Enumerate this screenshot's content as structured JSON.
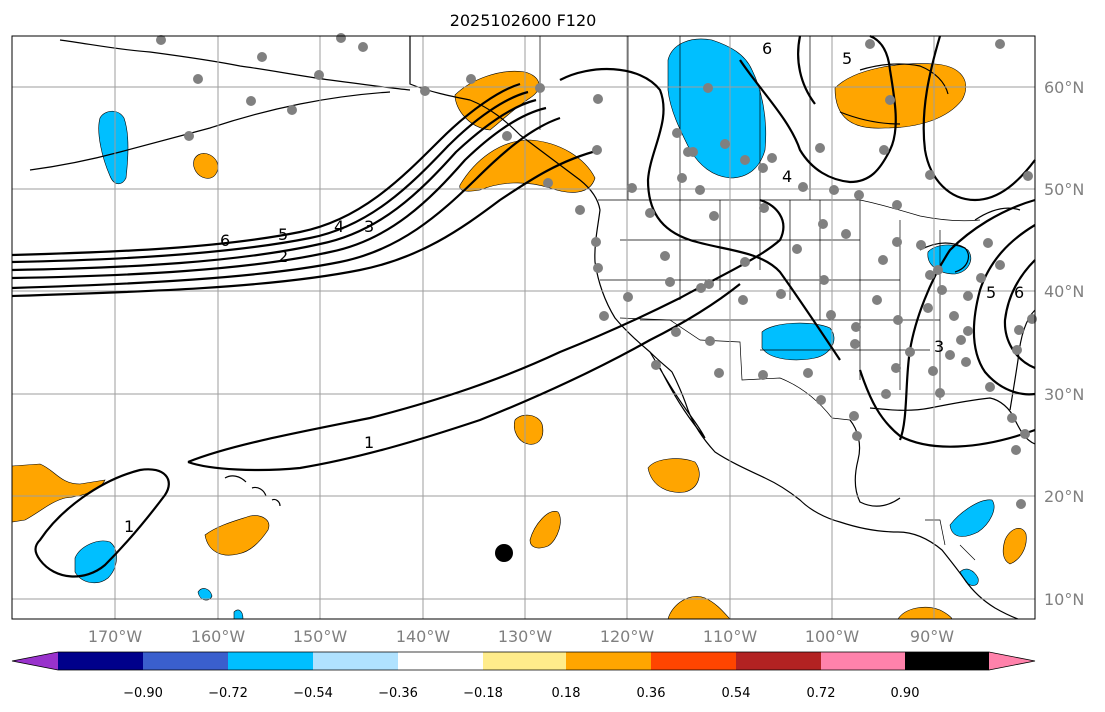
{
  "title": "2025102600 F120",
  "lon_labels": [
    "170°W",
    "160°W",
    "150°W",
    "140°W",
    "130°W",
    "120°W",
    "110°W",
    "100°W",
    "90°W"
  ],
  "lat_labels": [
    "60°N",
    "50°N",
    "40°N",
    "30°N",
    "20°N",
    "10°N"
  ],
  "contour_labels": [
    "6",
    "5",
    "4",
    "3",
    "2",
    "1",
    "1",
    "4",
    "5",
    "6",
    "5",
    "3",
    "6"
  ],
  "colorbar": {
    "colors": [
      "#9932cc",
      "#00008b",
      "#3a5fcd",
      "#00bfff",
      "#b0e2ff",
      "#ffffff",
      "#ffec8b",
      "#ffa500",
      "#ff4500",
      "#b22222",
      "#ff82ab"
    ],
    "tick_labels": [
      "−0.90",
      "−0.72",
      "−0.54",
      "−0.36",
      "−0.18",
      "0.18",
      "0.36",
      "0.54",
      "0.72",
      "0.90"
    ]
  },
  "colors": {
    "positive": "#ffa500",
    "negative": "#00bfff",
    "station": "#808080",
    "grid": "#9e9e9e"
  }
}
